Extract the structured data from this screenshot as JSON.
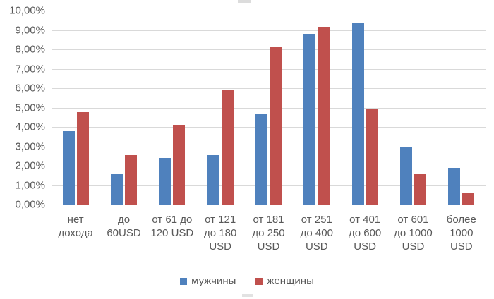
{
  "chart_data": {
    "type": "bar",
    "title": "",
    "categories": [
      "нет дохода",
      "до 60USD",
      "от 61 до 120 USD",
      "от 121 до 180 USD",
      "от 181 до 250 USD",
      "от 251 до 400 USD",
      "от 401 до 600 USD",
      "от 601 до 1000 USD",
      "более 1000 USD"
    ],
    "category_lines": [
      [
        "нет",
        "дохода"
      ],
      [
        "до",
        "60USD"
      ],
      [
        "от 61 до",
        "120 USD"
      ],
      [
        "от 121",
        "до 180",
        "USD"
      ],
      [
        "от 181",
        "до 250",
        "USD"
      ],
      [
        "от 251",
        "до 400",
        "USD"
      ],
      [
        "от 401",
        "до 600",
        "USD"
      ],
      [
        "от 601",
        "до 1000",
        "USD"
      ],
      [
        "более",
        "1000",
        "USD"
      ]
    ],
    "series": [
      {
        "name": "мужчины",
        "color": "#4F81BD",
        "values": [
          3.8,
          1.55,
          2.4,
          2.55,
          4.65,
          8.8,
          9.4,
          3.0,
          1.9
        ]
      },
      {
        "name": "женщины",
        "color": "#C0504D",
        "values": [
          4.75,
          2.55,
          4.1,
          5.9,
          8.1,
          9.15,
          4.9,
          1.55,
          0.6
        ]
      }
    ],
    "y_axis": {
      "min": 0,
      "max": 10,
      "step": 1,
      "unit": "%",
      "tick_labels": [
        "10,00%",
        "9,00%",
        "8,00%",
        "7,00%",
        "6,00%",
        "5,00%",
        "4,00%",
        "3,00%",
        "2,00%",
        "1,00%",
        "0,00%"
      ]
    },
    "xlabel": "",
    "ylabel": "",
    "grid": true,
    "legend": {
      "position": "bottom",
      "entries": [
        "мужчины",
        "женщины"
      ]
    }
  },
  "colors": {
    "series1": "#4F81BD",
    "series2": "#C0504D",
    "gridline": "#D9D9D9",
    "axis_text": "#595959",
    "background": "#FFFFFF"
  }
}
